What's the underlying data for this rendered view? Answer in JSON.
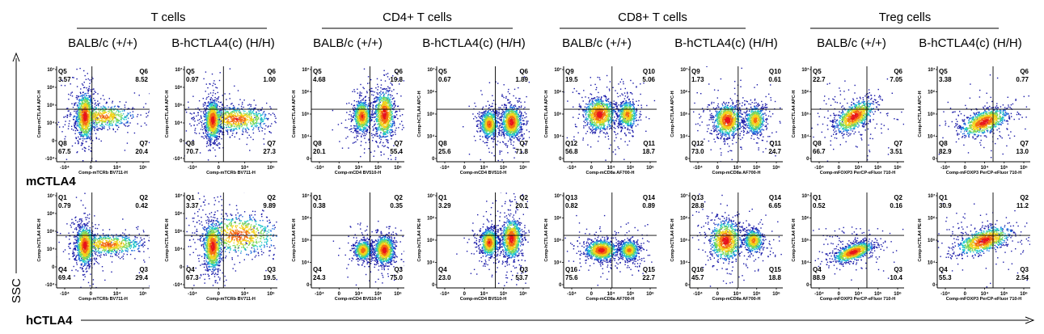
{
  "figure": {
    "groups": [
      "T cells",
      "CD4+ T cells",
      "CD8+ T cells",
      "Treg cells"
    ],
    "strains": [
      "BALB/c (+/+)",
      "B-hCTLA4(c) (H/H)"
    ],
    "row_labels": [
      "mCTLA4",
      "hCTLA4"
    ],
    "vertical_label": "SSC"
  },
  "chart_data": [
    {
      "type": "scatter",
      "group": "T cells",
      "strain": "BALB/c (+/+)",
      "row": "mCTLA4",
      "xlabel": "Comp-mTCRb BV711-H",
      "ylabel": "Comp-mCTLA4 APC-H",
      "quadrants": [
        {
          "name": "Q5",
          "value": "3.57"
        },
        {
          "name": "Q6",
          "value": "8.52"
        },
        {
          "name": "Q7",
          "value": "20.4"
        },
        {
          "name": "Q8",
          "value": "67.5"
        }
      ],
      "x_ticks": [
        "-10⁴",
        "0",
        "10⁴",
        "10⁵"
      ],
      "y_ticks": [
        "10⁷",
        "10⁶",
        "10⁵",
        "10⁴",
        "0",
        "-10⁴"
      ],
      "populations": [
        {
          "x": 0.3,
          "y": 0.52,
          "sx": 0.045,
          "sy": 0.12,
          "w": 1
        },
        {
          "x": 0.5,
          "y": 0.52,
          "sx": 0.16,
          "sy": 0.06,
          "w": 0.6
        }
      ]
    },
    {
      "type": "scatter",
      "group": "T cells",
      "strain": "B-hCTLA4(c) (H/H)",
      "row": "mCTLA4",
      "xlabel": "Comp-mTCRb BV711-H",
      "ylabel": "Comp-mCTLA4 APC-H",
      "quadrants": [
        {
          "name": "Q5",
          "value": "0.97"
        },
        {
          "name": "Q6",
          "value": "1.00"
        },
        {
          "name": "Q7",
          "value": "27.3"
        },
        {
          "name": "Q8",
          "value": "70.7"
        }
      ],
      "x_ticks": [
        "-10⁴",
        "0",
        "10⁴",
        "10⁵"
      ],
      "y_ticks": [
        "10⁷",
        "10⁶",
        "10⁵",
        "10⁴",
        "0",
        "-10⁴"
      ],
      "populations": [
        {
          "x": 0.3,
          "y": 0.56,
          "sx": 0.04,
          "sy": 0.1,
          "w": 1
        },
        {
          "x": 0.55,
          "y": 0.55,
          "sx": 0.18,
          "sy": 0.06,
          "w": 0.8
        }
      ]
    },
    {
      "type": "scatter",
      "group": "CD4+ T cells",
      "strain": "BALB/c (+/+)",
      "row": "mCTLA4",
      "xlabel": "Comp-mCD4 BV510-H",
      "ylabel": "Comp-mCTLA4 APC-H",
      "quadrants": [
        {
          "name": "Q5",
          "value": "4.68"
        },
        {
          "name": "Q6",
          "value": "19.8"
        },
        {
          "name": "Q7",
          "value": "55.4"
        },
        {
          "name": "Q8",
          "value": "20.1"
        }
      ],
      "x_ticks": [
        "-10⁴",
        "0",
        "10⁴",
        "10⁵",
        "10⁶"
      ],
      "y_ticks": [
        "10⁷",
        "10⁶",
        "10⁵",
        "10⁴",
        "0"
      ],
      "populations": [
        {
          "x": 0.54,
          "y": 0.52,
          "sx": 0.045,
          "sy": 0.08,
          "w": 0.8
        },
        {
          "x": 0.78,
          "y": 0.5,
          "sx": 0.05,
          "sy": 0.12,
          "w": 1
        }
      ]
    },
    {
      "type": "scatter",
      "group": "CD4+ T cells",
      "strain": "B-hCTLA4(c) (H/H)",
      "row": "mCTLA4",
      "xlabel": "Comp-mCD4 BV510-H",
      "ylabel": "Comp-hCTLA4 APC-H",
      "quadrants": [
        {
          "name": "Q5",
          "value": "0.67"
        },
        {
          "name": "Q6",
          "value": "1.89"
        },
        {
          "name": "Q7",
          "value": "71.8"
        },
        {
          "name": "Q8",
          "value": "25.6"
        }
      ],
      "x_ticks": [
        "-10⁴",
        "0",
        "10⁴",
        "10⁵",
        "10⁶"
      ],
      "y_ticks": [
        "10⁷",
        "10⁶",
        "10⁵",
        "10⁴",
        "0"
      ],
      "populations": [
        {
          "x": 0.56,
          "y": 0.6,
          "sx": 0.045,
          "sy": 0.07,
          "w": 0.7
        },
        {
          "x": 0.8,
          "y": 0.58,
          "sx": 0.05,
          "sy": 0.08,
          "w": 1
        }
      ]
    },
    {
      "type": "scatter",
      "group": "CD8+ T cells",
      "strain": "BALB/c (+/+)",
      "row": "mCTLA4",
      "xlabel": "Comp-mCD8a AF700-H",
      "ylabel": "Comp-mCTLA4 APC-H",
      "quadrants": [
        {
          "name": "Q9",
          "value": "19.5"
        },
        {
          "name": "Q10",
          "value": "5.06"
        },
        {
          "name": "Q11",
          "value": "18.7"
        },
        {
          "name": "Q12",
          "value": "56.8"
        }
      ],
      "x_ticks": [
        "-10⁴",
        "0",
        "10⁴",
        "10⁵",
        "10⁶"
      ],
      "y_ticks": [
        "10⁷",
        "10⁶",
        "10⁵",
        "10⁴",
        "0"
      ],
      "populations": [
        {
          "x": 0.38,
          "y": 0.5,
          "sx": 0.08,
          "sy": 0.08,
          "w": 1
        },
        {
          "x": 0.68,
          "y": 0.5,
          "sx": 0.05,
          "sy": 0.07,
          "w": 0.6
        }
      ]
    },
    {
      "type": "scatter",
      "group": "CD8+ T cells",
      "strain": "B-hCTLA4(c) (H/H)",
      "row": "mCTLA4",
      "xlabel": "Comp-mCD8a AF700-H",
      "ylabel": "Comp-hCTLA4 APC-H",
      "quadrants": [
        {
          "name": "Q9",
          "value": "1.73"
        },
        {
          "name": "Q10",
          "value": "0.61"
        },
        {
          "name": "Q11",
          "value": "24.7"
        },
        {
          "name": "Q12",
          "value": "73.0"
        }
      ],
      "x_ticks": [
        "-10⁴",
        "0",
        "10⁴",
        "10⁵",
        "10⁶"
      ],
      "y_ticks": [
        "10⁷",
        "10⁶",
        "10⁵",
        "10⁴",
        "0"
      ],
      "populations": [
        {
          "x": 0.4,
          "y": 0.56,
          "sx": 0.07,
          "sy": 0.08,
          "w": 1
        },
        {
          "x": 0.7,
          "y": 0.56,
          "sx": 0.05,
          "sy": 0.07,
          "w": 0.6
        }
      ]
    },
    {
      "type": "scatter",
      "group": "Treg cells",
      "strain": "BALB/c (+/+)",
      "row": "mCTLA4",
      "xlabel": "Comp-mFOXP3 PerCP-eFluor 710-H",
      "ylabel": "Comp-mCTLA4 APC-H",
      "quadrants": [
        {
          "name": "Q5",
          "value": "22.7"
        },
        {
          "name": "Q6",
          "value": "7.05"
        },
        {
          "name": "Q7",
          "value": "3.51"
        },
        {
          "name": "Q8",
          "value": "66.7"
        }
      ],
      "x_ticks": [
        "-10⁴",
        "0",
        "10⁴",
        "10⁵",
        "10⁶"
      ],
      "y_ticks": [
        "10⁷",
        "10⁶",
        "10⁵",
        "10⁴",
        "0"
      ],
      "populations": [
        {
          "x": 0.46,
          "y": 0.52,
          "sx": 0.1,
          "sy": 0.08,
          "w": 1,
          "rho": 0.6
        }
      ]
    },
    {
      "type": "scatter",
      "group": "Treg cells",
      "strain": "B-hCTLA4(c) (H/H)",
      "row": "mCTLA4",
      "xlabel": "Comp-mFOXP3 PerCP-eFluor 710-H",
      "ylabel": "Comp-hCTLA4 APC-H",
      "quadrants": [
        {
          "name": "Q5",
          "value": "3.38"
        },
        {
          "name": "Q6",
          "value": "0.77"
        },
        {
          "name": "Q7",
          "value": "13.0"
        },
        {
          "name": "Q8",
          "value": "82.9"
        }
      ],
      "x_ticks": [
        "-10⁴",
        "0",
        "10⁴",
        "10⁵",
        "10⁶"
      ],
      "y_ticks": [
        "10⁷",
        "10⁶",
        "10⁵",
        "10⁴",
        "0"
      ],
      "populations": [
        {
          "x": 0.5,
          "y": 0.58,
          "sx": 0.12,
          "sy": 0.07,
          "w": 1,
          "rho": 0.55
        }
      ]
    },
    {
      "type": "scatter",
      "group": "T cells",
      "strain": "BALB/c (+/+)",
      "row": "hCTLA4",
      "xlabel": "Comp-mTCRb BV711-H",
      "ylabel": "Comp-hCTLA4 PE-H",
      "quadrants": [
        {
          "name": "Q1",
          "value": "0.79"
        },
        {
          "name": "Q2",
          "value": "0.42"
        },
        {
          "name": "Q3",
          "value": "29.4"
        },
        {
          "name": "Q4",
          "value": "69.4"
        }
      ],
      "x_ticks": [
        "-10⁴",
        "0",
        "10⁴",
        "10⁵"
      ],
      "y_ticks": [
        "10⁷",
        "10⁶",
        "10⁵",
        "10⁴",
        "0",
        "-10⁴"
      ],
      "populations": [
        {
          "x": 0.3,
          "y": 0.55,
          "sx": 0.045,
          "sy": 0.1,
          "w": 1
        },
        {
          "x": 0.55,
          "y": 0.54,
          "sx": 0.18,
          "sy": 0.05,
          "w": 0.7
        }
      ]
    },
    {
      "type": "scatter",
      "group": "T cells",
      "strain": "B-hCTLA4(c) (H/H)",
      "row": "hCTLA4",
      "xlabel": "Comp-mTCRb BV711-H",
      "ylabel": "Comp-hCTLA4 PE-H",
      "quadrants": [
        {
          "name": "Q1",
          "value": "3.37"
        },
        {
          "name": "Q2",
          "value": "9.89"
        },
        {
          "name": "Q3",
          "value": "19.5"
        },
        {
          "name": "Q4",
          "value": "67.3"
        }
      ],
      "x_ticks": [
        "-10⁴",
        "0",
        "10⁴",
        "10⁵"
      ],
      "y_ticks": [
        "10⁷",
        "10⁶",
        "10⁵",
        "10⁴",
        "0",
        "-10⁴"
      ],
      "populations": [
        {
          "x": 0.3,
          "y": 0.56,
          "sx": 0.045,
          "sy": 0.12,
          "w": 1
        },
        {
          "x": 0.58,
          "y": 0.44,
          "sx": 0.2,
          "sy": 0.1,
          "w": 0.8
        }
      ]
    },
    {
      "type": "scatter",
      "group": "CD4+ T cells",
      "strain": "BALB/c (+/+)",
      "row": "hCTLA4",
      "xlabel": "Comp-mCD4 BV510-H",
      "ylabel": "Comp-hCTLA4 PE-H",
      "quadrants": [
        {
          "name": "Q1",
          "value": "0.38"
        },
        {
          "name": "Q2",
          "value": "0.35"
        },
        {
          "name": "Q3",
          "value": "75.0"
        },
        {
          "name": "Q4",
          "value": "24.3"
        }
      ],
      "x_ticks": [
        "-10⁴",
        "0",
        "10⁴",
        "10⁵",
        "10⁶"
      ],
      "y_ticks": [
        "10⁷",
        "10⁶",
        "10⁵",
        "10⁴",
        "0"
      ],
      "populations": [
        {
          "x": 0.55,
          "y": 0.6,
          "sx": 0.045,
          "sy": 0.05,
          "w": 0.7
        },
        {
          "x": 0.78,
          "y": 0.6,
          "sx": 0.05,
          "sy": 0.07,
          "w": 1
        }
      ]
    },
    {
      "type": "scatter",
      "group": "CD4+ T cells",
      "strain": "B-hCTLA4(c) (H/H)",
      "row": "hCTLA4",
      "xlabel": "Comp-mCD4 BV510-H",
      "ylabel": "Comp-hCTLA4 PE-H",
      "quadrants": [
        {
          "name": "Q1",
          "value": "3.29"
        },
        {
          "name": "Q2",
          "value": "20.1"
        },
        {
          "name": "Q3",
          "value": "53.7"
        },
        {
          "name": "Q4",
          "value": "23.0"
        }
      ],
      "x_ticks": [
        "-10⁴",
        "0",
        "10⁴",
        "10⁵",
        "10⁶"
      ],
      "y_ticks": [
        "10⁷",
        "10⁶",
        "10⁵",
        "10⁴",
        "0"
      ],
      "populations": [
        {
          "x": 0.56,
          "y": 0.52,
          "sx": 0.045,
          "sy": 0.07,
          "w": 0.8
        },
        {
          "x": 0.8,
          "y": 0.48,
          "sx": 0.05,
          "sy": 0.1,
          "w": 1
        }
      ]
    },
    {
      "type": "scatter",
      "group": "CD8+ T cells",
      "strain": "BALB/c (+/+)",
      "row": "hCTLA4",
      "xlabel": "Comp-mCD8a AF700-H",
      "ylabel": "Comp-hCTLA4 PE-H",
      "quadrants": [
        {
          "name": "Q13",
          "value": "0.82"
        },
        {
          "name": "Q14",
          "value": "0.89"
        },
        {
          "name": "Q15",
          "value": "22.7"
        },
        {
          "name": "Q16",
          "value": "75.6"
        }
      ],
      "x_ticks": [
        "-10⁴",
        "0",
        "10⁴",
        "10⁵",
        "10⁶"
      ],
      "y_ticks": [
        "10⁷",
        "10⁶",
        "10⁵",
        "10⁴",
        "0"
      ],
      "populations": [
        {
          "x": 0.4,
          "y": 0.6,
          "sx": 0.08,
          "sy": 0.05,
          "w": 1
        },
        {
          "x": 0.7,
          "y": 0.6,
          "sx": 0.05,
          "sy": 0.05,
          "w": 0.6
        }
      ]
    },
    {
      "type": "scatter",
      "group": "CD8+ T cells",
      "strain": "B-hCTLA4(c) (H/H)",
      "row": "hCTLA4",
      "xlabel": "Comp-mCD8a AF700-H",
      "ylabel": "Comp-hCTLA4 PE-H",
      "quadrants": [
        {
          "name": "Q13",
          "value": "28.8"
        },
        {
          "name": "Q14",
          "value": "6.65"
        },
        {
          "name": "Q15",
          "value": "18.8"
        },
        {
          "name": "Q16",
          "value": "45.7"
        }
      ],
      "x_ticks": [
        "-10⁴",
        "0",
        "10⁴",
        "10⁵",
        "10⁶"
      ],
      "y_ticks": [
        "10⁷",
        "10⁶",
        "10⁵",
        "10⁴",
        "0"
      ],
      "populations": [
        {
          "x": 0.38,
          "y": 0.5,
          "sx": 0.08,
          "sy": 0.1,
          "w": 1
        },
        {
          "x": 0.68,
          "y": 0.5,
          "sx": 0.05,
          "sy": 0.06,
          "w": 0.6
        }
      ]
    },
    {
      "type": "scatter",
      "group": "Treg cells",
      "strain": "BALB/c (+/+)",
      "row": "hCTLA4",
      "xlabel": "Comp-mFOXP3 PerCP-eFluor 710-H",
      "ylabel": "Comp-hCTLA4 PE-H",
      "quadrants": [
        {
          "name": "Q1",
          "value": "0.52"
        },
        {
          "name": "Q2",
          "value": "0.16"
        },
        {
          "name": "Q3",
          "value": "10.4"
        },
        {
          "name": "Q4",
          "value": "88.9"
        }
      ],
      "x_ticks": [
        "-10⁴",
        "0",
        "10⁴",
        "10⁵",
        "10⁶"
      ],
      "y_ticks": [
        "10⁷",
        "10⁶",
        "10⁵",
        "10⁴",
        "0"
      ],
      "populations": [
        {
          "x": 0.45,
          "y": 0.62,
          "sx": 0.1,
          "sy": 0.05,
          "w": 1,
          "rho": 0.6
        }
      ]
    },
    {
      "type": "scatter",
      "group": "Treg cells",
      "strain": "B-hCTLA4(c) (H/H)",
      "row": "hCTLA4",
      "xlabel": "Comp-mFOXP3 PerCP-eFluor 710-H",
      "ylabel": "Comp-hCTLA4 PE-H",
      "quadrants": [
        {
          "name": "Q1",
          "value": "30.9"
        },
        {
          "name": "Q2",
          "value": "11.2"
        },
        {
          "name": "Q3",
          "value": "2.54"
        },
        {
          "name": "Q4",
          "value": "55.3"
        }
      ],
      "x_ticks": [
        "-10⁴",
        "0",
        "10⁴",
        "10⁵",
        "10⁶"
      ],
      "y_ticks": [
        "10⁷",
        "10⁶",
        "10⁵",
        "10⁴",
        "0"
      ],
      "populations": [
        {
          "x": 0.5,
          "y": 0.5,
          "sx": 0.14,
          "sy": 0.07,
          "w": 1,
          "rho": 0.55
        }
      ]
    }
  ]
}
